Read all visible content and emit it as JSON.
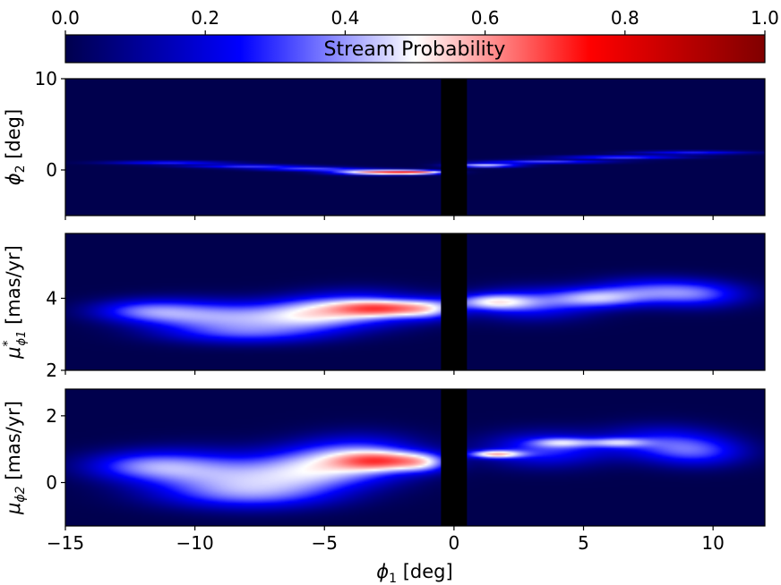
{
  "chart_data": {
    "type": "heatmap",
    "colorbar": {
      "label": "Stream Probability",
      "ticks": [
        "0.0",
        "0.2",
        "0.4",
        "0.6",
        "0.8",
        "1.0"
      ],
      "range": [
        0,
        1
      ],
      "colormap": "seismic-like",
      "placement": "top"
    },
    "shared_x": {
      "label_sym": "ϕ",
      "label_sub": "1",
      "label_rest": " [deg]",
      "range": [
        -15,
        12
      ],
      "ticks": [
        -15,
        -10,
        -5,
        0,
        5,
        10
      ],
      "tick_labels": [
        "−15",
        "−10",
        "−5",
        "0",
        "5",
        "10"
      ]
    },
    "masked_region": {
      "x_range": [
        -0.5,
        0.5
      ],
      "color": "#000000"
    },
    "background_color": "#00004d",
    "panels": [
      {
        "name": "phi2",
        "ylabel_sym": "ϕ",
        "ylabel_sub": "2",
        "ylabel_sup": "",
        "ylabel_rest": " [deg]",
        "ylim": [
          -5,
          10
        ],
        "yticks": [
          0,
          10
        ],
        "ytick_labels": [
          "0",
          "10"
        ],
        "blobs": [
          {
            "x": -11,
            "y": 0.8,
            "sx": 1.6,
            "sy": 0.13,
            "a": 0.3
          },
          {
            "x": -8,
            "y": 0.4,
            "sx": 1.6,
            "sy": 0.13,
            "a": 0.32
          },
          {
            "x": -5.5,
            "y": 0.1,
            "sx": 1.4,
            "sy": 0.14,
            "a": 0.36
          },
          {
            "x": -3.2,
            "y": -0.25,
            "sx": 1.1,
            "sy": 0.18,
            "a": 0.62
          },
          {
            "x": -2,
            "y": -0.25,
            "sx": 0.9,
            "sy": 0.16,
            "a": 0.58
          },
          {
            "x": -1.2,
            "y": -0.25,
            "sx": 0.7,
            "sy": 0.14,
            "a": 0.4
          },
          {
            "x": 1.2,
            "y": 0.5,
            "sx": 0.9,
            "sy": 0.15,
            "a": 0.55
          },
          {
            "x": 3.5,
            "y": 0.9,
            "sx": 1.6,
            "sy": 0.13,
            "a": 0.36
          },
          {
            "x": 6.5,
            "y": 1.4,
            "sx": 1.6,
            "sy": 0.13,
            "a": 0.36
          },
          {
            "x": 9.2,
            "y": 1.9,
            "sx": 1.5,
            "sy": 0.13,
            "a": 0.28
          }
        ]
      },
      {
        "name": "pmra",
        "ylabel_sym": "μ",
        "ylabel_sub": "ϕ1",
        "ylabel_sup": "*",
        "ylabel_rest": " [mas/yr]",
        "ylim": [
          2,
          5.8
        ],
        "yticks": [
          2,
          4
        ],
        "ytick_labels": [
          "2",
          "4"
        ],
        "blobs": [
          {
            "x": -12,
            "y": 3.65,
            "sx": 1.4,
            "sy": 0.22,
            "a": 0.3
          },
          {
            "x": -10,
            "y": 3.5,
            "sx": 1.6,
            "sy": 0.3,
            "a": 0.3
          },
          {
            "x": -7.5,
            "y": 3.45,
            "sx": 1.6,
            "sy": 0.3,
            "a": 0.3
          },
          {
            "x": -5.5,
            "y": 3.55,
            "sx": 1.3,
            "sy": 0.3,
            "a": 0.34
          },
          {
            "x": -3.5,
            "y": 3.7,
            "sx": 1.6,
            "sy": 0.32,
            "a": 0.42
          },
          {
            "x": -2.8,
            "y": 3.72,
            "sx": 1.2,
            "sy": 0.14,
            "a": 0.6
          },
          {
            "x": -1.0,
            "y": 3.7,
            "sx": 0.8,
            "sy": 0.2,
            "a": 0.35
          },
          {
            "x": 1.5,
            "y": 3.9,
            "sx": 1.0,
            "sy": 0.15,
            "a": 0.44
          },
          {
            "x": 3,
            "y": 3.85,
            "sx": 1.6,
            "sy": 0.3,
            "a": 0.3
          },
          {
            "x": 5.5,
            "y": 4.0,
            "sx": 1.2,
            "sy": 0.18,
            "a": 0.36
          },
          {
            "x": 7.5,
            "y": 4.2,
            "sx": 1.6,
            "sy": 0.25,
            "a": 0.3
          },
          {
            "x": 9.5,
            "y": 4.1,
            "sx": 1.3,
            "sy": 0.25,
            "a": 0.26
          },
          {
            "x": -8,
            "y": 3.0,
            "sx": 2.2,
            "sy": 0.2,
            "a": 0.22
          }
        ]
      },
      {
        "name": "pmdec",
        "ylabel_sym": "μ",
        "ylabel_sub": "ϕ2",
        "ylabel_sup": "",
        "ylabel_rest": " [mas/yr]",
        "ylim": [
          -1.3,
          2.8
        ],
        "yticks": [
          0,
          2
        ],
        "ytick_labels": [
          "0",
          "2"
        ],
        "blobs": [
          {
            "x": -12,
            "y": 0.5,
            "sx": 1.6,
            "sy": 0.3,
            "a": 0.3
          },
          {
            "x": -10,
            "y": 0.3,
            "sx": 1.8,
            "sy": 0.45,
            "a": 0.28
          },
          {
            "x": -7.5,
            "y": 0.1,
            "sx": 1.8,
            "sy": 0.45,
            "a": 0.28
          },
          {
            "x": -5.5,
            "y": 0.4,
            "sx": 1.5,
            "sy": 0.45,
            "a": 0.32
          },
          {
            "x": -3.5,
            "y": 0.7,
            "sx": 1.6,
            "sy": 0.45,
            "a": 0.42
          },
          {
            "x": -2.8,
            "y": 0.65,
            "sx": 1.1,
            "sy": 0.18,
            "a": 0.6
          },
          {
            "x": -1.2,
            "y": 0.6,
            "sx": 0.7,
            "sy": 0.2,
            "a": 0.35
          },
          {
            "x": 1.6,
            "y": 0.85,
            "sx": 0.7,
            "sy": 0.08,
            "a": 0.62
          },
          {
            "x": 3.5,
            "y": 1.0,
            "sx": 1.6,
            "sy": 0.35,
            "a": 0.3
          },
          {
            "x": 4.2,
            "y": 1.2,
            "sx": 0.8,
            "sy": 0.1,
            "a": 0.32
          },
          {
            "x": 6.3,
            "y": 1.2,
            "sx": 0.8,
            "sy": 0.1,
            "a": 0.34
          },
          {
            "x": 8,
            "y": 1.2,
            "sx": 1.6,
            "sy": 0.35,
            "a": 0.26
          },
          {
            "x": 9.5,
            "y": 0.9,
            "sx": 1.3,
            "sy": 0.3,
            "a": 0.24
          },
          {
            "x": -8,
            "y": -0.4,
            "sx": 2.4,
            "sy": 0.3,
            "a": 0.22
          }
        ]
      }
    ]
  }
}
